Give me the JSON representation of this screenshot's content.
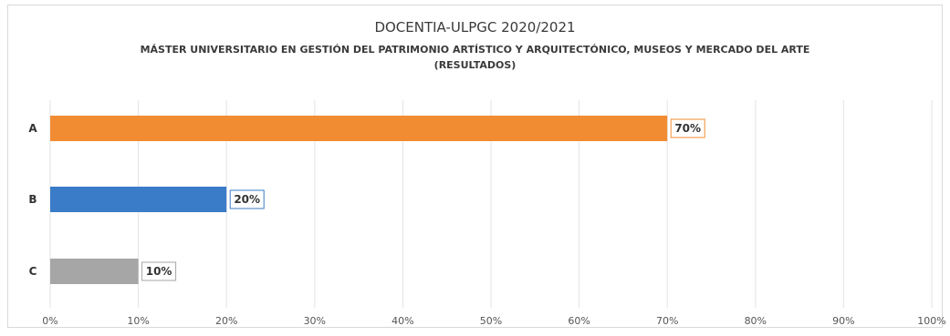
{
  "chart_data": {
    "type": "bar",
    "orientation": "horizontal",
    "title": "DOCENTIA-ULPGC 2020/2021",
    "subtitle": "MÁSTER UNIVERSITARIO EN GESTIÓN DEL PATRIMONIO ARTÍSTICO Y ARQUITECTÓNICO, MUSEOS Y MERCADO DEL ARTE",
    "subtitle2": "(RESULTADOS)",
    "categories": [
      "A",
      "B",
      "C"
    ],
    "values": [
      70,
      20,
      10
    ],
    "data_labels": [
      "70%",
      "20%",
      "10%"
    ],
    "colors": [
      "#f28c33",
      "#3a7cc7",
      "#a6a6a6"
    ],
    "xlim": [
      0,
      100
    ],
    "xticks": [
      "0%",
      "10%",
      "20%",
      "30%",
      "40%",
      "50%",
      "60%",
      "70%",
      "80%",
      "90%",
      "100%"
    ],
    "grid": true,
    "legend": false
  }
}
